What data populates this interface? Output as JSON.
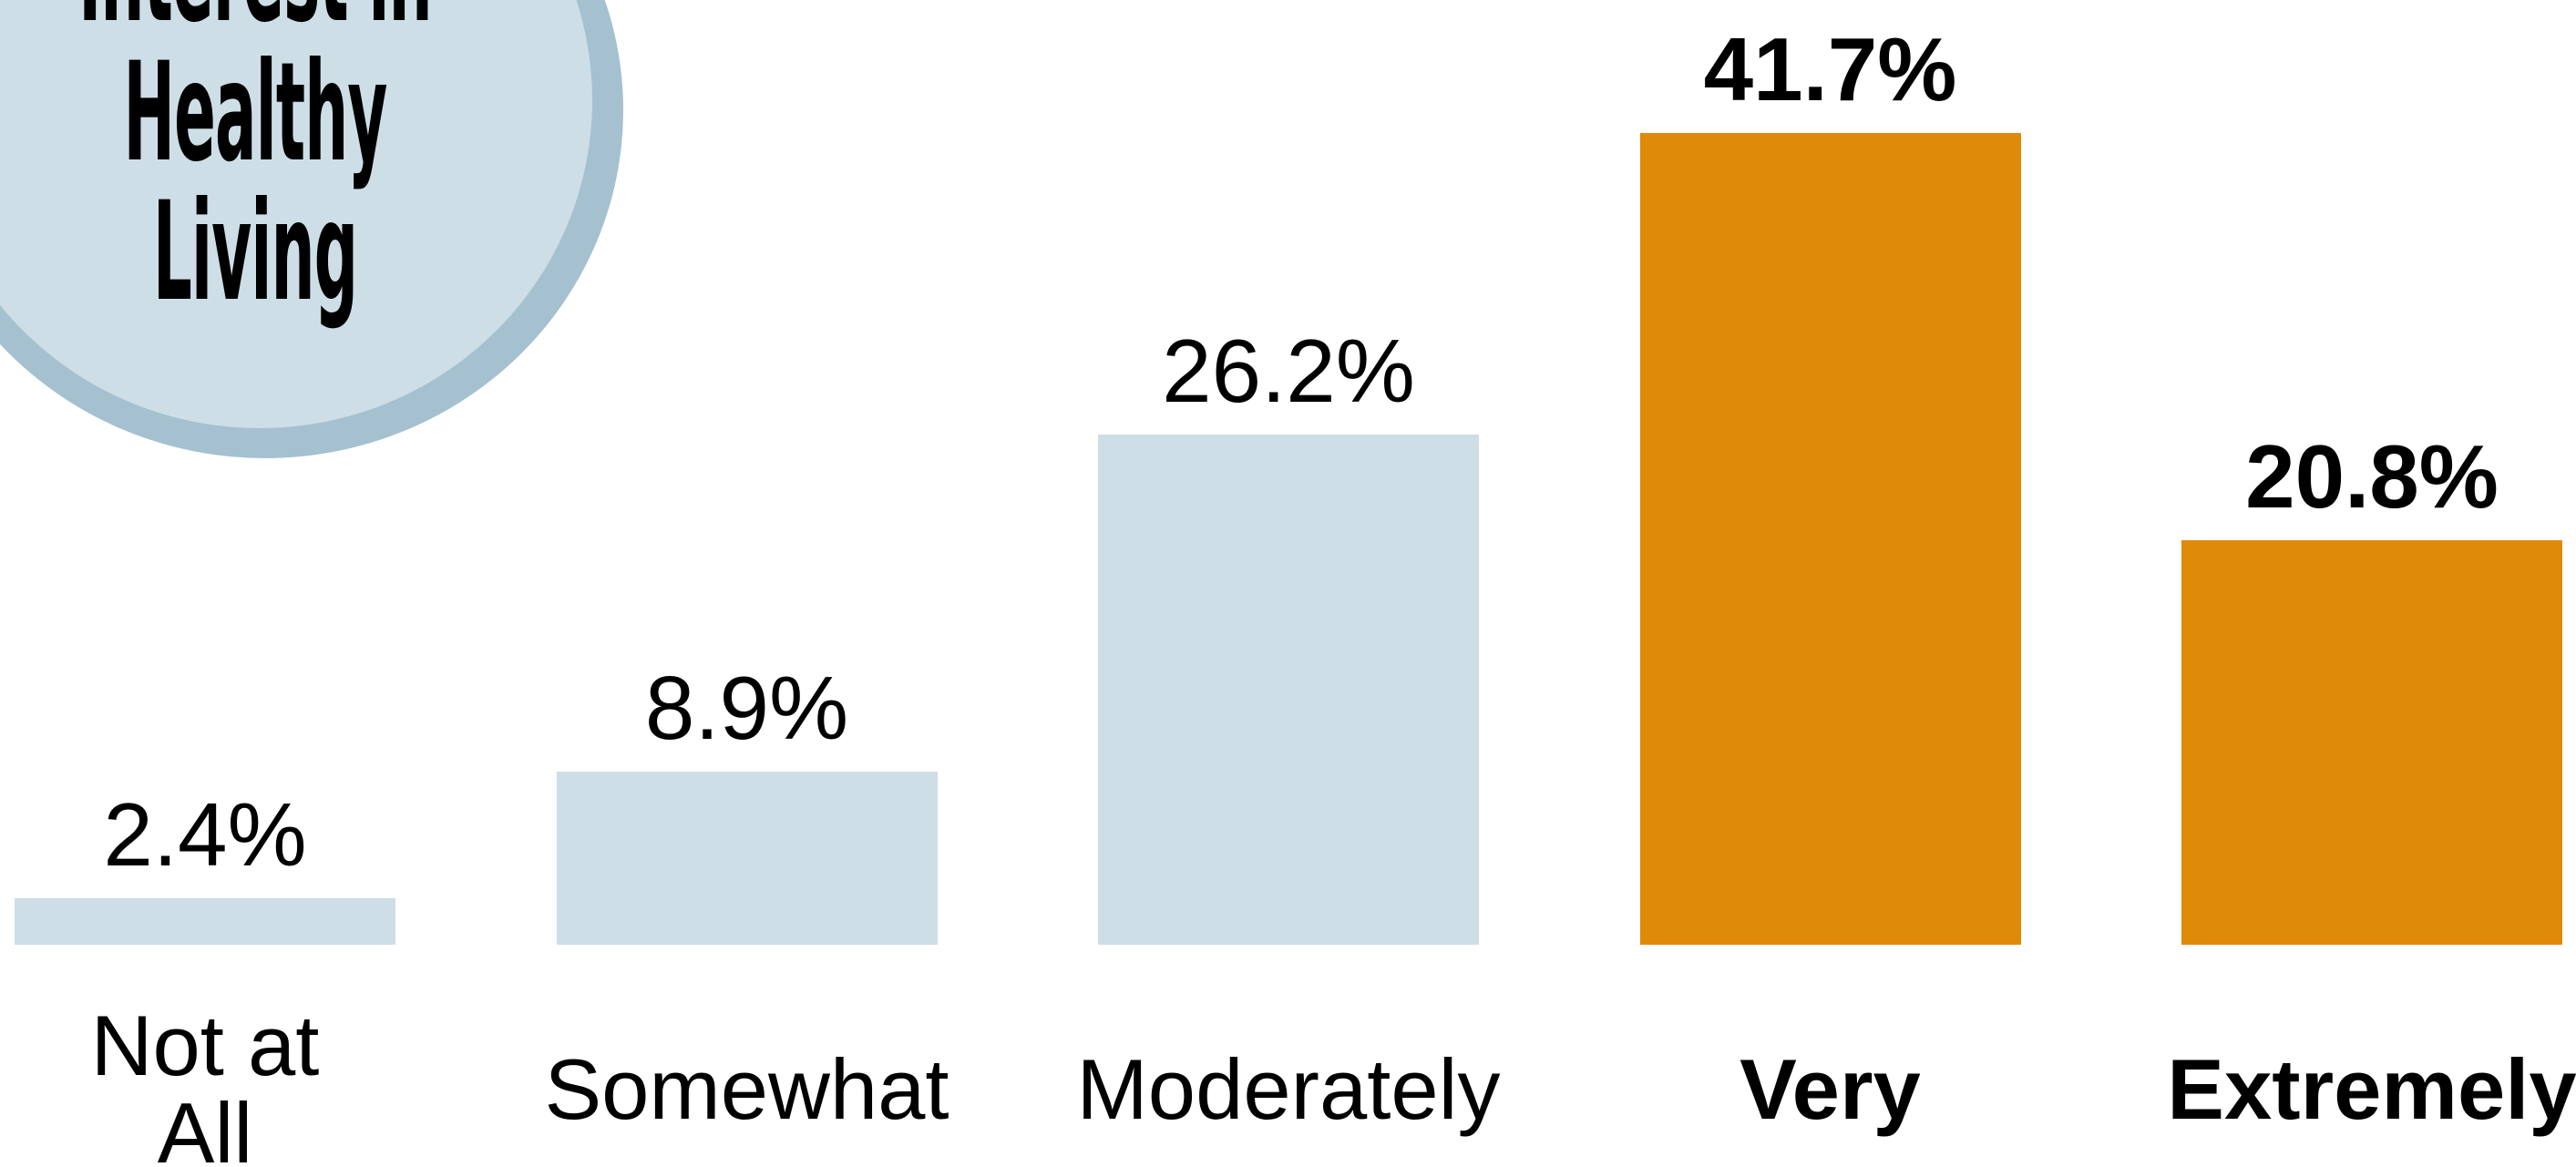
{
  "chart_data": {
    "type": "bar",
    "title": "Interest in\nHealthy\nLiving",
    "categories": [
      "Not at\nAll",
      "Somewhat",
      "Moderately",
      "Very",
      "Extremely"
    ],
    "values": [
      2.4,
      8.9,
      26.2,
      41.7,
      20.8
    ],
    "value_labels": [
      "2.4%",
      "8.9%",
      "26.2%",
      "41.7%",
      "20.8%"
    ],
    "colors": [
      "#cddee6",
      "#cddee6",
      "#cddee6",
      "#e08a0a",
      "#e08a0a"
    ]
  }
}
